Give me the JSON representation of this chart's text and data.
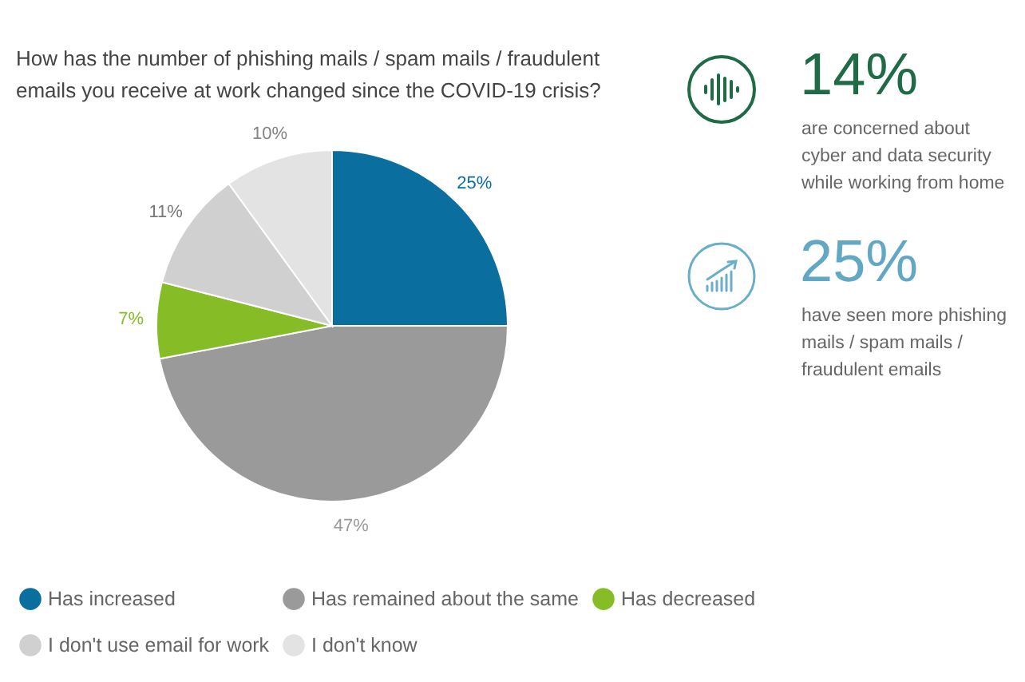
{
  "chart_data": [
    {
      "type": "pie",
      "title": "How has the number of phishing mails / spam mails / fraudulent emails you receive at work changed since the COVID-19 crisis?",
      "categories": [
        "Has increased",
        "Has remained about the same",
        "Has decreased",
        "I don't use email for work",
        "I don't know"
      ],
      "values": [
        25,
        47,
        7,
        11,
        10
      ],
      "colors": [
        "#0a6e9e",
        "#9a9a9a",
        "#86bc25",
        "#d0d0d0",
        "#e3e3e3"
      ],
      "value_labels": [
        "25%",
        "47%",
        "7%",
        "11%",
        "10%"
      ],
      "legend": "bottom"
    },
    {
      "type": "other",
      "annotations": [
        "14%",
        "are concerned about cyber and data security while working from home",
        "25%",
        "have seen more phishing mails / spam mails / fraudulent emails"
      ]
    }
  ]
}
